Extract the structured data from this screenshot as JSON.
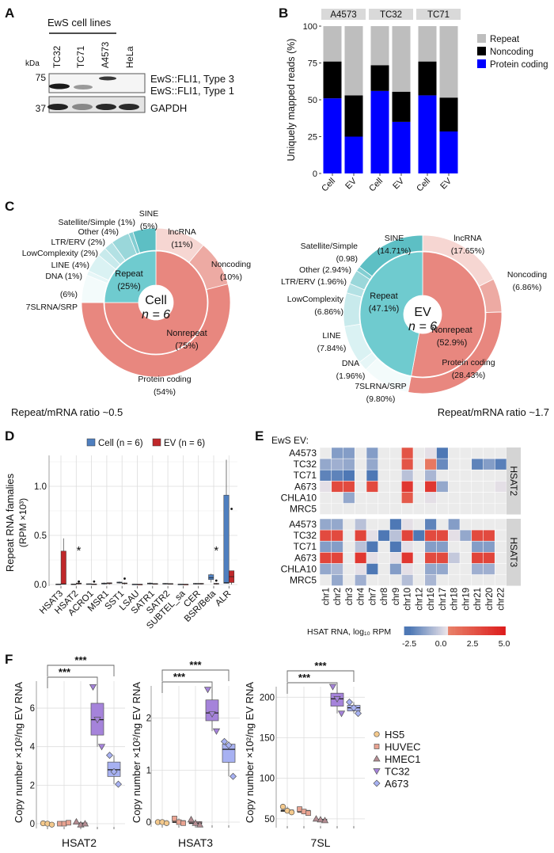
{
  "panel_labels": {
    "a": "A",
    "b": "B",
    "c": "C",
    "d": "D",
    "e": "E",
    "f": "F"
  },
  "panel_a": {
    "header": "EwS cell lines",
    "lanes": [
      "TC32",
      "TC71",
      "A4573",
      "HeLa"
    ],
    "unit": "kDa",
    "markers": [
      "75",
      "37"
    ],
    "bands": [
      "EwS::FLI1, Type 3",
      "EwS::FLI1, Type 1",
      "GAPDH"
    ]
  },
  "chart_data": [
    {
      "type": "bar",
      "stacked": true,
      "facets": [
        "A4573",
        "TC32",
        "TC71"
      ],
      "categories": [
        "Cell",
        "EV"
      ],
      "ylabel": "Uniquely mapped reads (%)",
      "ylim": [
        0,
        100
      ],
      "yticks": [
        "0",
        "25",
        "50",
        "75",
        "100"
      ],
      "legend": "right",
      "series": [
        {
          "name": "Protein coding",
          "color": "#0000FF",
          "values": [
            [
              51,
              25
            ],
            [
              56,
              35
            ],
            [
              53,
              28.5
            ]
          ]
        },
        {
          "name": "Noncoding",
          "color": "#000000",
          "values": [
            [
              25,
              28
            ],
            [
              17.5,
              20.5
            ],
            [
              23,
              23
            ]
          ]
        },
        {
          "name": "Repeat",
          "color": "#BEBEBE",
          "values": [
            [
              24,
              47
            ],
            [
              26.5,
              44.5
            ],
            [
              24,
              48.5
            ]
          ]
        }
      ]
    },
    {
      "type": "pie",
      "center_label": "Cell",
      "center_n": "n = 6",
      "footer": "Repeat/mRNA ratio ~0.5",
      "inner": [
        {
          "label": "Nonrepeat",
          "value_text": "(75%)",
          "value": 75,
          "color": "#E8877F"
        },
        {
          "label": "Repeat",
          "value_text": "(25%)",
          "value": 25,
          "color": "#6FCBCF"
        }
      ],
      "outer": [
        {
          "label": "lncRNA",
          "value_text": "(11%)",
          "value": 11,
          "color": "#F6D6D2"
        },
        {
          "label": "Noncoding",
          "value_text": "(10%)",
          "value": 10,
          "color": "#EDAAA3"
        },
        {
          "label": "Protein coding",
          "value_text": "(54%)",
          "value": 54,
          "color": "#E8877F"
        },
        {
          "label": "7SLRNA/SRP",
          "value_text": "(6%)",
          "value": 6,
          "color": "#F3FBFB"
        },
        {
          "label": "DNA",
          "value_text": "(1%)",
          "value": 1,
          "color": "#E6F6F7"
        },
        {
          "label": "LINE",
          "value_text": "(4%)",
          "value": 4,
          "color": "#DAF2F3"
        },
        {
          "label": "LowComplexity",
          "value_text": "(2%)",
          "value": 2,
          "color": "#C8EAEC"
        },
        {
          "label": "LTR/ERV",
          "value_text": "(2%)",
          "value": 2,
          "color": "#B3E1E4"
        },
        {
          "label": "Other",
          "value_text": "(4%)",
          "value": 4,
          "color": "#9AD7DA"
        },
        {
          "label": "Satellite/Simple",
          "value_text": "(1%)",
          "value": 1,
          "color": "#82CED2"
        },
        {
          "label": "SINE",
          "value_text": "(5%)",
          "value": 5,
          "color": "#5DBFC4"
        }
      ]
    },
    {
      "type": "pie",
      "center_label": "EV",
      "center_n": "n = 6",
      "footer": "Repeat/mRNA ratio ~1.7",
      "inner": [
        {
          "label": "Nonrepeat",
          "value_text": "(52.9%)",
          "value": 52.9,
          "color": "#E8877F"
        },
        {
          "label": "Repeat",
          "value_text": "(47.1%)",
          "value": 47.1,
          "color": "#6FCBCF"
        }
      ],
      "outer": [
        {
          "label": "lncRNA",
          "value_text": "(17.65%)",
          "value": 17.65,
          "color": "#F6D6D2"
        },
        {
          "label": "Noncoding",
          "value_text": "(6.86%)",
          "value": 6.86,
          "color": "#EDAAA3"
        },
        {
          "label": "Protein coding",
          "value_text": "(28.43%)",
          "value": 28.43,
          "color": "#E8877F"
        },
        {
          "label": "7SLRNA/SRP",
          "value_text": "(9.80%)",
          "value": 9.8,
          "color": "#F3FBFB"
        },
        {
          "label": "DNA",
          "value_text": "(1.96%)",
          "value": 1.96,
          "color": "#E6F6F7"
        },
        {
          "label": "LINE",
          "value_text": "(7.84%)",
          "value": 7.84,
          "color": "#DAF2F3"
        },
        {
          "label": "LowComplexity",
          "value_text": "(6.86%)",
          "value": 6.86,
          "color": "#C8EAEC"
        },
        {
          "label": "LTR/ERV",
          "value_text": "(1.96%)",
          "value": 1.96,
          "color": "#B3E1E4"
        },
        {
          "label": "Other",
          "value_text": "(2.94%)",
          "value": 2.94,
          "color": "#9AD7DA"
        },
        {
          "label": "Satellite/Simple",
          "value_text": "(0.98)",
          "value": 0.98,
          "color": "#82CED2"
        },
        {
          "label": "SINE",
          "value_text": "(14.71%)",
          "value": 14.71,
          "color": "#5DBFC4"
        }
      ]
    },
    {
      "type": "box",
      "categories": [
        "HSAT3",
        "HSAT2",
        "ACRO1",
        "MSR1",
        "SST1",
        "LSAU",
        "SATR1",
        "SATR2",
        "SUBTEL_sa",
        "CER",
        "BSR/Beta",
        "ALR"
      ],
      "ylabel": [
        "Repeat RNA famalies",
        "(RPM ×10³)"
      ],
      "ylim": [
        0,
        1.3
      ],
      "yticks": [
        "0.0",
        "0.5",
        "1.0"
      ],
      "legend": "top",
      "significance_marker": "*",
      "significant_categories": [
        "HSAT2",
        "BSR/Beta"
      ],
      "series": [
        {
          "name": "Cell (n = 6)",
          "color": "#4F7FBF",
          "boxes": [
            [
              0,
              0,
              0.002,
              0.005,
              0.006
            ],
            [
              0,
              0,
              0.003,
              0.006,
              0.008
            ],
            [
              0,
              0.002,
              0.005,
              0.008,
              0.01
            ],
            [
              0,
              0.005,
              0.01,
              0.015,
              0.02
            ],
            [
              0.01,
              0.015,
              0.02,
              0.025,
              0.03
            ],
            [
              0,
              0,
              0.002,
              0.004,
              0.005
            ],
            [
              0,
              0.005,
              0.01,
              0.015,
              0.02
            ],
            [
              0,
              0.005,
              0.008,
              0.012,
              0.015
            ],
            [
              0,
              0,
              0.002,
              0.004,
              0.005
            ],
            [
              0,
              0.004,
              0.008,
              0.012,
              0.015
            ],
            [
              0.02,
              0.05,
              0.07,
              0.1,
              0.11
            ],
            [
              0.01,
              0.012,
              0.02,
              0.91,
              1.27
            ]
          ],
          "outliers": [
            [],
            [],
            [],
            [],
            [],
            [],
            [],
            [],
            [],
            [],
            [],
            []
          ]
        },
        {
          "name": "EV (n = 6)",
          "color": "#C0282A",
          "boxes": [
            [
              0,
              0.002,
              0.006,
              0.34,
              0.47
            ],
            [
              0,
              0.005,
              0.01,
              0.015,
              0.02
            ],
            [
              0,
              0.002,
              0.004,
              0.006,
              0.008
            ],
            [
              0,
              0.008,
              0.012,
              0.018,
              0.02
            ],
            [
              0,
              0.008,
              0.012,
              0.016,
              0.02
            ],
            [
              0,
              0,
              0.002,
              0.003,
              0.004
            ],
            [
              0,
              0.004,
              0.008,
              0.01,
              0.012
            ],
            [
              0,
              0.004,
              0.008,
              0.01,
              0.012
            ],
            [
              0,
              0,
              0.002,
              0.003,
              0.004
            ],
            [
              0,
              0.005,
              0.008,
              0.012,
              0.015
            ],
            [
              0,
              0.004,
              0.008,
              0.012,
              0.015
            ],
            [
              0,
              0.02,
              0.08,
              0.14,
              0.14
            ]
          ],
          "outliers": [
            [],
            [
              0.03
            ],
            [
              0.03
            ],
            [],
            [
              0.06
            ],
            [],
            [],
            [],
            [],
            [],
            [
              0.04
            ],
            [
              0.77
            ]
          ]
        }
      ]
    },
    {
      "type": "heatmap",
      "title": "EwS EV:",
      "rows": [
        "A4573",
        "TC32",
        "TC71",
        "A673",
        "CHLA10",
        "MRC5"
      ],
      "columns": [
        "chr1",
        "chr2",
        "chr3",
        "chr4",
        "chr7",
        "chr8",
        "chr9",
        "chr10",
        "chr12",
        "chr16",
        "chr17",
        "chr18",
        "chr19",
        "chr21",
        "chr20",
        "chr22"
      ],
      "colorbar": {
        "label": "HSAT RNA, log₁₀ RPM",
        "ticks": [
          "-2.5",
          "0.0",
          "2.5",
          "5.0"
        ],
        "range": [
          -2.5,
          5.0
        ],
        "low_color": "#4E78B5",
        "mid_color": "#EFE6EA",
        "high_color": "#DD1C1C"
      },
      "panels": [
        {
          "name": "HSAT2",
          "values": [
            [
              null,
              -1.5,
              -1.5,
              null,
              -1.5,
              null,
              null,
              2.5,
              null,
              0.3,
              -2.5,
              null,
              null,
              null,
              null,
              null
            ],
            [
              -1.2,
              -1.0,
              -1.2,
              null,
              -1.2,
              null,
              null,
              2.5,
              null,
              1.0,
              -2.0,
              null,
              null,
              -2.2,
              -1.5,
              -2.3
            ],
            [
              -2.2,
              -2.2,
              -2.5,
              null,
              -2.5,
              null,
              null,
              -0.5,
              null,
              -0.8,
              null,
              null,
              null,
              null,
              null,
              null
            ],
            [
              0.3,
              3.0,
              3.0,
              null,
              3.0,
              null,
              null,
              3.8,
              null,
              3.8,
              -1.2,
              null,
              null,
              null,
              null,
              0.3
            ],
            [
              null,
              null,
              -1.2,
              null,
              null,
              null,
              null,
              2.3,
              null,
              0.3,
              null,
              null,
              null,
              null,
              null,
              null
            ],
            [
              null,
              null,
              null,
              null,
              null,
              null,
              null,
              null,
              null,
              null,
              null,
              null,
              null,
              null,
              null,
              null
            ]
          ]
        },
        {
          "name": "HSAT3",
          "values": [
            [
              -1.2,
              -1.2,
              null,
              -0.5,
              null,
              null,
              -2.5,
              0.3,
              null,
              -2.2,
              null,
              -1.5,
              null,
              null,
              null,
              null
            ],
            [
              3.0,
              3.0,
              null,
              3.2,
              0.3,
              -2.5,
              -0.5,
              3.2,
              -2.5,
              3.0,
              3.0,
              0.3,
              -1.2,
              3.0,
              3.0,
              null
            ],
            [
              -1.5,
              -1.5,
              null,
              -0.5,
              -2.5,
              null,
              -2.5,
              0.3,
              null,
              -1.5,
              -1.5,
              null,
              null,
              -1.5,
              -1.5,
              null
            ],
            [
              3.2,
              3.2,
              null,
              3.8,
              0.3,
              null,
              0.3,
              3.8,
              null,
              3.0,
              3.0,
              -0.3,
              null,
              3.2,
              3.2,
              null
            ],
            [
              -1.2,
              -0.8,
              null,
              0.3,
              -2.5,
              null,
              -1.5,
              0.3,
              null,
              -1.2,
              -1.2,
              null,
              null,
              -1.0,
              -1.0,
              null
            ],
            [
              null,
              -1.2,
              null,
              -1.0,
              null,
              null,
              null,
              -0.6,
              null,
              -0.8,
              null,
              null,
              null,
              null,
              null,
              null
            ]
          ]
        }
      ]
    },
    {
      "type": "box",
      "xlabel": "HSAT2",
      "ylabel": "Copy number ×10²/ng EV RNA",
      "categories": [
        "HS5",
        "HUVEC",
        "HMEC1",
        "TC32",
        "A673"
      ],
      "ylim": [
        0,
        7.4
      ],
      "yticks": [
        "0",
        "2",
        "4",
        "6"
      ],
      "significance": [
        "***",
        "***"
      ],
      "points": [
        [
          0.02,
          0,
          -0.05
        ],
        [
          0,
          0,
          0.05
        ],
        [
          0.1,
          -0.05,
          0
        ],
        [
          7.1,
          5.4,
          4.0
        ],
        [
          3.55,
          2.7,
          2.05
        ]
      ],
      "boxes": [
        [
          -0.05,
          -0.02,
          0,
          0.01,
          0.02
        ],
        [
          0,
          0,
          0,
          0.02,
          0.05
        ],
        [
          -0.05,
          -0.02,
          0,
          0.05,
          0.1
        ],
        [
          4.0,
          4.6,
          5.4,
          6.25,
          7.1
        ],
        [
          2.05,
          2.45,
          2.8,
          3.2,
          3.55
        ]
      ]
    },
    {
      "type": "box",
      "xlabel": "HSAT3",
      "ylabel": "Copy number ×10²/ng EV RNA",
      "categories": [
        "HS5",
        "HUVEC",
        "HMEC1",
        "TC32",
        "A673"
      ],
      "ylim": [
        0,
        2.62
      ],
      "yticks": [
        "0",
        "1",
        "2"
      ],
      "significance": [
        "***",
        "***"
      ],
      "points": [
        [
          0,
          0,
          -0.02
        ],
        [
          0.07,
          0,
          -0.02
        ],
        [
          0.05,
          -0.02,
          -0.05
        ],
        [
          2.55,
          2.08,
          1.75
        ],
        [
          1.55,
          1.48,
          0.88
        ]
      ],
      "boxes": [
        [
          -0.02,
          -0.01,
          0,
          0,
          0
        ],
        [
          -0.02,
          -0.01,
          0,
          0.03,
          0.07
        ],
        [
          -0.05,
          -0.03,
          -0.02,
          0.01,
          0.05
        ],
        [
          1.75,
          1.95,
          2.1,
          2.35,
          2.55
        ],
        [
          0.88,
          1.15,
          1.4,
          1.5,
          1.55
        ]
      ]
    },
    {
      "type": "box",
      "xlabel": "7SL",
      "ylabel": "Copy number ×10²/ng EV RNA",
      "categories": [
        "HS5",
        "HUVEC",
        "HMEC1",
        "TC32",
        "A673"
      ],
      "ylim": [
        45,
        213
      ],
      "yticks": [
        "50",
        "100",
        "150",
        "200"
      ],
      "significance": [
        "***",
        "***"
      ],
      "points": [
        [
          65,
          60,
          58
        ],
        [
          62,
          59,
          57
        ],
        [
          50,
          49,
          48
        ],
        [
          213,
          198,
          180
        ],
        [
          194,
          187,
          180
        ]
      ],
      "boxes": [
        [
          58,
          59,
          60,
          61,
          65
        ],
        [
          57,
          58,
          59,
          60.5,
          62
        ],
        [
          48,
          48.5,
          49,
          49.5,
          50
        ],
        [
          180,
          189,
          198,
          205,
          213
        ],
        [
          180,
          183,
          187,
          190,
          194
        ]
      ],
      "legend": "right",
      "legend_entries": [
        {
          "name": "HS5",
          "shape": "circle",
          "color": "#F4C98C"
        },
        {
          "name": "HUVEC",
          "shape": "square",
          "color": "#E9A391"
        },
        {
          "name": "HMEC1",
          "shape": "triangle-up",
          "color": "#B48C92"
        },
        {
          "name": "TC32",
          "shape": "triangle-down",
          "color": "#A583DA"
        },
        {
          "name": "A673",
          "shape": "diamond",
          "color": "#A7B1F2"
        }
      ]
    }
  ]
}
